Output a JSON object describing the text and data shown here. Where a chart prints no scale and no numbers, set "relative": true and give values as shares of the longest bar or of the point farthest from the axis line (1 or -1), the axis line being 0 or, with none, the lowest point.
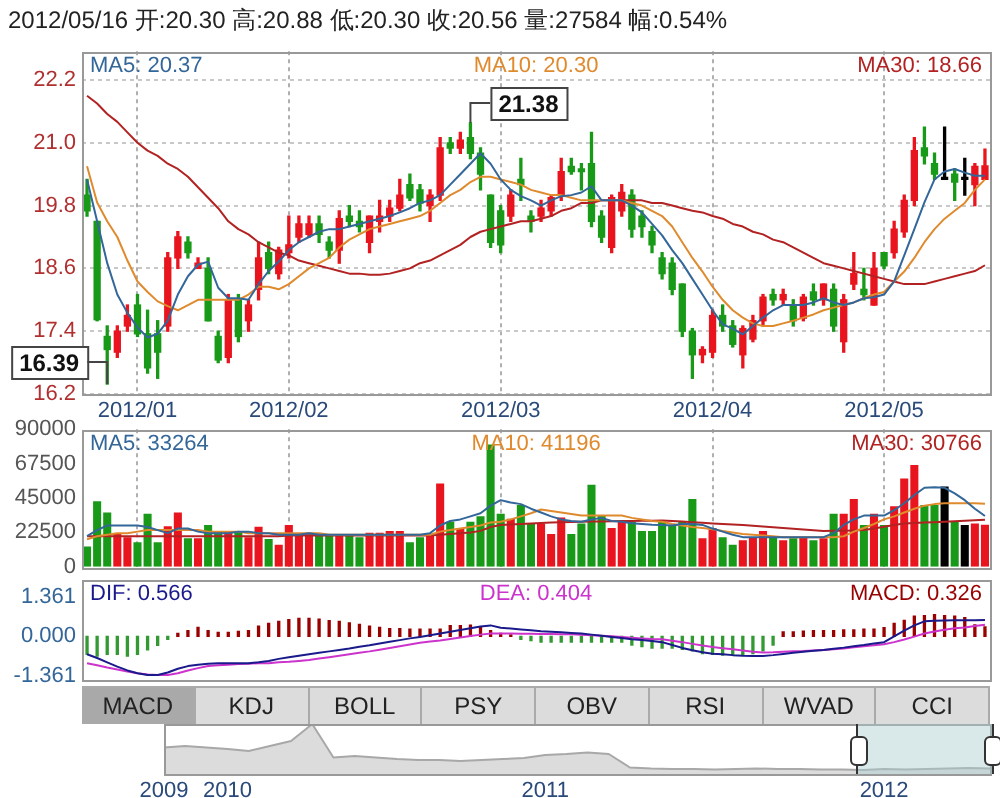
{
  "chart_data": [
    {
      "type": "candlestick",
      "title": "2012/05/16 开:20.30 高:20.88 低:20.30 收:20.56 量:27584 幅:0.54%",
      "legend": "top",
      "grid": true,
      "categories": [
        null,
        null,
        null,
        null,
        null,
        "2012/01",
        null,
        null,
        null,
        null,
        null,
        null,
        null,
        null,
        null,
        null,
        null,
        null,
        null,
        null,
        "2012/02",
        null,
        null,
        null,
        null,
        null,
        null,
        null,
        null,
        null,
        null,
        null,
        null,
        null,
        null,
        null,
        null,
        null,
        null,
        null,
        null,
        "2012/03",
        null,
        null,
        null,
        null,
        null,
        null,
        null,
        null,
        null,
        null,
        null,
        null,
        null,
        null,
        null,
        null,
        null,
        null,
        null,
        null,
        "2012/04",
        null,
        null,
        null,
        null,
        null,
        null,
        null,
        null,
        null,
        null,
        null,
        null,
        null,
        null,
        null,
        null,
        "2012/05",
        null,
        null,
        null,
        null,
        null,
        null,
        null,
        null,
        null,
        null
      ],
      "ohlc": [
        [
          20.0,
          20.3,
          19.6,
          19.7
        ],
        [
          19.5,
          19.5,
          17.6,
          17.62
        ],
        [
          17.3,
          17.5,
          16.39,
          17.05
        ],
        [
          17.0,
          17.5,
          16.9,
          17.4
        ],
        [
          17.5,
          17.9,
          17.4,
          17.7
        ],
        [
          17.9,
          18.1,
          17.3,
          17.35
        ],
        [
          17.35,
          17.8,
          16.6,
          16.7
        ],
        [
          17.35,
          17.6,
          16.5,
          17.0
        ],
        [
          17.5,
          18.9,
          17.4,
          18.8
        ],
        [
          18.8,
          19.3,
          18.6,
          19.2
        ],
        [
          19.1,
          19.2,
          18.8,
          18.9
        ],
        [
          18.6,
          18.8,
          18.6,
          18.7
        ],
        [
          18.6,
          18.8,
          17.6,
          17.6
        ],
        [
          17.3,
          17.4,
          16.8,
          16.85
        ],
        [
          16.9,
          18.1,
          16.8,
          18.0
        ],
        [
          18.0,
          18.1,
          17.2,
          17.3
        ],
        [
          17.6,
          18.0,
          17.4,
          17.9
        ],
        [
          18.2,
          19.1,
          18.0,
          18.8
        ],
        [
          18.9,
          19.1,
          18.5,
          18.6
        ],
        [
          18.5,
          19.0,
          18.4,
          18.95
        ],
        [
          18.9,
          19.6,
          18.8,
          19.05
        ],
        [
          19.2,
          19.6,
          19.1,
          19.45
        ],
        [
          19.25,
          19.6,
          19.2,
          19.45
        ],
        [
          19.45,
          19.6,
          19.1,
          19.25
        ],
        [
          19.1,
          19.2,
          18.8,
          18.95
        ],
        [
          18.95,
          19.7,
          18.7,
          19.55
        ],
        [
          19.6,
          19.8,
          19.4,
          19.5
        ],
        [
          19.5,
          19.7,
          19.3,
          19.4
        ],
        [
          19.1,
          19.6,
          18.9,
          19.6
        ],
        [
          19.5,
          19.9,
          19.3,
          19.6
        ],
        [
          19.6,
          19.9,
          19.5,
          19.75
        ],
        [
          19.75,
          20.3,
          19.7,
          20.0
        ],
        [
          20.2,
          20.4,
          19.9,
          19.95
        ],
        [
          20.1,
          20.2,
          19.7,
          19.85
        ],
        [
          19.8,
          20.1,
          19.5,
          20.0
        ],
        [
          20.0,
          21.1,
          19.9,
          20.9
        ],
        [
          21.0,
          21.1,
          20.8,
          20.9
        ],
        [
          20.9,
          21.2,
          20.8,
          21.05
        ],
        [
          21.1,
          21.38,
          20.7,
          20.8
        ],
        [
          20.8,
          20.9,
          20.1,
          20.4
        ],
        [
          20.0,
          20.0,
          19.0,
          19.1
        ],
        [
          19.7,
          19.8,
          18.9,
          19.05
        ],
        [
          19.6,
          20.1,
          19.5,
          20.0
        ],
        [
          20.3,
          20.7,
          19.9,
          20.2
        ],
        [
          19.6,
          19.7,
          19.3,
          19.5
        ],
        [
          19.6,
          19.9,
          19.5,
          19.75
        ],
        [
          19.7,
          20.0,
          19.6,
          19.95
        ],
        [
          20.0,
          20.7,
          19.9,
          20.45
        ],
        [
          20.55,
          20.7,
          20.4,
          20.45
        ],
        [
          20.5,
          20.6,
          20.1,
          20.45
        ],
        [
          20.6,
          21.2,
          19.4,
          19.5
        ],
        [
          19.6,
          19.7,
          19.1,
          19.2
        ],
        [
          19.0,
          20.0,
          18.9,
          19.95
        ],
        [
          19.7,
          20.2,
          19.6,
          20.05
        ],
        [
          20.0,
          20.1,
          19.2,
          19.35
        ],
        [
          19.6,
          19.7,
          19.2,
          19.4
        ],
        [
          19.3,
          19.4,
          18.9,
          19.05
        ],
        [
          18.8,
          18.9,
          18.4,
          18.5
        ],
        [
          18.7,
          18.8,
          18.1,
          18.2
        ],
        [
          18.3,
          18.3,
          17.3,
          17.4
        ],
        [
          17.4,
          17.45,
          16.5,
          16.95
        ],
        [
          16.95,
          17.1,
          16.8,
          17.05
        ],
        [
          17.0,
          17.8,
          16.9,
          17.7
        ],
        [
          17.7,
          17.9,
          17.4,
          17.5
        ],
        [
          17.5,
          17.6,
          17.1,
          17.15
        ],
        [
          16.95,
          17.5,
          16.7,
          17.45
        ],
        [
          17.25,
          17.7,
          17.2,
          17.6
        ],
        [
          17.6,
          18.1,
          17.5,
          18.05
        ],
        [
          18.1,
          18.2,
          17.9,
          18.0
        ],
        [
          18.0,
          18.2,
          17.9,
          18.1
        ],
        [
          17.9,
          18.0,
          17.5,
          17.6
        ],
        [
          17.65,
          18.1,
          17.6,
          18.05
        ],
        [
          18.15,
          18.3,
          17.9,
          18.0
        ],
        [
          18.0,
          18.3,
          17.9,
          18.3
        ],
        [
          18.2,
          18.3,
          17.4,
          17.5
        ],
        [
          17.2,
          18.1,
          17.0,
          18.0
        ],
        [
          18.3,
          18.9,
          18.2,
          18.5
        ],
        [
          18.2,
          18.6,
          18.0,
          18.1
        ],
        [
          17.9,
          18.9,
          17.9,
          18.6
        ],
        [
          18.9,
          18.9,
          18.6,
          18.65
        ],
        [
          18.9,
          19.5,
          18.8,
          19.35
        ],
        [
          19.3,
          20.0,
          19.2,
          19.9
        ],
        [
          19.9,
          21.1,
          19.8,
          20.85
        ],
        [
          20.9,
          21.3,
          20.6,
          20.75
        ],
        [
          20.6,
          20.8,
          20.3,
          20.4
        ],
        [
          20.3,
          21.3,
          20.3,
          20.3
        ],
        [
          20.4,
          20.5,
          19.9,
          20.25
        ],
        [
          20.3,
          20.7,
          20.0,
          20.3
        ],
        [
          20.2,
          20.6,
          19.8,
          20.55
        ],
        [
          20.3,
          20.88,
          20.3,
          20.56
        ]
      ],
      "colors": [
        "#189a18",
        "#189a18",
        "#189a18",
        "#e8141e",
        "#e8141e",
        "#189a18",
        "#189a18",
        "#189a18",
        "#e8141e",
        "#e8141e",
        "#189a18",
        "#e8141e",
        "#189a18",
        "#189a18",
        "#e8141e",
        "#189a18",
        "#e8141e",
        "#e8141e",
        "#189a18",
        "#e8141e",
        "#e8141e",
        "#e8141e",
        "#e8141e",
        "#189a18",
        "#189a18",
        "#e8141e",
        "#189a18",
        "#189a18",
        "#e8141e",
        "#e8141e",
        "#e8141e",
        "#e8141e",
        "#189a18",
        "#189a18",
        "#e8141e",
        "#e8141e",
        "#189a18",
        "#e8141e",
        "#189a18",
        "#189a18",
        "#189a18",
        "#189a18",
        "#e8141e",
        "#189a18",
        "#189a18",
        "#e8141e",
        "#e8141e",
        "#e8141e",
        "#189a18",
        "#189a18",
        "#189a18",
        "#189a18",
        "#e8141e",
        "#e8141e",
        "#189a18",
        "#189a18",
        "#189a18",
        "#189a18",
        "#189a18",
        "#189a18",
        "#189a18",
        "#e8141e",
        "#e8141e",
        "#189a18",
        "#189a18",
        "#e8141e",
        "#e8141e",
        "#e8141e",
        "#189a18",
        "#e8141e",
        "#189a18",
        "#e8141e",
        "#189a18",
        "#e8141e",
        "#189a18",
        "#e8141e",
        "#e8141e",
        "#189a18",
        "#e8141e",
        "#189a18",
        "#e8141e",
        "#e8141e",
        "#e8141e",
        "#189a18",
        "#189a18",
        "#000000",
        "#189a18",
        "#000000",
        "#e8141e",
        "#e8141e"
      ],
      "series": [
        {
          "name": "MA5: 20.37",
          "type": "line",
          "color": "#336699",
          "values": [
            20.3,
            19.5,
            18.7,
            18.1,
            17.75,
            17.47,
            17.28,
            17.35,
            17.6,
            18.1,
            18.45,
            18.67,
            18.73,
            18.23,
            18.03,
            18.03,
            18.0,
            18.3,
            18.55,
            18.73,
            18.95,
            19.1,
            19.2,
            19.3,
            19.35,
            19.35,
            19.4,
            19.45,
            19.5,
            19.55,
            19.6,
            19.67,
            19.75,
            19.85,
            19.9,
            20.0,
            20.2,
            20.4,
            20.6,
            20.8,
            20.6,
            20.3,
            20.1,
            19.98,
            19.9,
            19.8,
            19.9,
            19.98,
            20.0,
            20.05,
            20.17,
            19.9,
            19.9,
            19.9,
            19.8,
            19.67,
            19.45,
            19.23,
            18.95,
            18.7,
            18.4,
            18.1,
            17.8,
            17.53,
            17.45,
            17.34,
            17.5,
            17.66,
            17.8,
            17.9,
            17.9,
            17.9,
            17.95,
            18.03,
            17.95,
            17.9,
            17.95,
            18.03,
            18.05,
            18.1,
            18.35,
            18.85,
            19.35,
            19.86,
            20.3,
            20.45,
            20.5,
            20.43,
            20.37,
            20.37
          ]
        },
        {
          "name": "MA10: 20.30",
          "type": "line",
          "color": "#e08a2e",
          "values": [
            20.55,
            19.86,
            19.5,
            19.2,
            18.75,
            18.35,
            18.15,
            17.97,
            17.88,
            17.8,
            17.9,
            18.0,
            18.0,
            18.0,
            18.0,
            18.0,
            18.1,
            18.25,
            18.25,
            18.2,
            18.3,
            18.45,
            18.6,
            18.7,
            18.8,
            19.0,
            19.15,
            19.25,
            19.35,
            19.4,
            19.45,
            19.5,
            19.55,
            19.6,
            19.7,
            19.85,
            20.0,
            20.1,
            20.25,
            20.35,
            20.35,
            20.3,
            20.25,
            20.2,
            20.1,
            20.05,
            20.0,
            20.0,
            19.95,
            19.9,
            19.9,
            19.9,
            19.9,
            19.9,
            19.85,
            19.8,
            19.7,
            19.6,
            19.4,
            19.1,
            18.8,
            18.54,
            18.25,
            18.0,
            17.8,
            17.66,
            17.55,
            17.5,
            17.5,
            17.55,
            17.6,
            17.66,
            17.72,
            17.8,
            17.85,
            17.9,
            17.95,
            18.03,
            18.1,
            18.15,
            18.35,
            18.54,
            18.8,
            19.1,
            19.35,
            19.55,
            19.7,
            19.85,
            20.1,
            20.3
          ]
        },
        {
          "name": "MA30: 18.66",
          "type": "line",
          "color": "#b22222",
          "values": [
            21.9,
            21.75,
            21.55,
            21.4,
            21.2,
            21.0,
            20.85,
            20.75,
            20.6,
            20.5,
            20.35,
            20.15,
            19.95,
            19.75,
            19.5,
            19.35,
            19.25,
            19.1,
            19.0,
            18.9,
            18.85,
            18.75,
            18.7,
            18.65,
            18.6,
            18.55,
            18.5,
            18.5,
            18.48,
            18.48,
            18.5,
            18.55,
            18.6,
            18.7,
            18.75,
            18.85,
            18.95,
            19.05,
            19.2,
            19.3,
            19.35,
            19.4,
            19.45,
            19.5,
            19.5,
            19.55,
            19.6,
            19.7,
            19.75,
            19.85,
            19.85,
            19.9,
            19.9,
            19.9,
            19.9,
            19.9,
            19.85,
            19.85,
            19.8,
            19.75,
            19.7,
            19.67,
            19.6,
            19.55,
            19.45,
            19.4,
            19.3,
            19.25,
            19.15,
            19.1,
            19.0,
            18.9,
            18.8,
            18.7,
            18.65,
            18.6,
            18.55,
            18.5,
            18.45,
            18.4,
            18.35,
            18.3,
            18.3,
            18.3,
            18.35,
            18.4,
            18.45,
            18.5,
            18.55,
            18.66
          ]
        }
      ],
      "ylim": [
        16.2,
        22.75
      ],
      "yticks": [
        16.2,
        17.4,
        18.6,
        19.8,
        {
          "value": 21,
          "label": "21.0"
        },
        22.2
      ],
      "annotations": [
        "21.38",
        "16.39"
      ]
    },
    {
      "type": "bar",
      "legend": "top",
      "grid": "x",
      "tick_labels": "y",
      "categories": [
        null,
        null,
        null,
        null,
        null,
        "2012/01",
        null,
        null,
        null,
        null,
        null,
        null,
        null,
        null,
        null,
        null,
        null,
        null,
        null,
        null,
        "2012/02",
        null,
        null,
        null,
        null,
        null,
        null,
        null,
        null,
        null,
        null,
        null,
        null,
        null,
        null,
        null,
        null,
        null,
        null,
        null,
        null,
        "2012/03",
        null,
        null,
        null,
        null,
        null,
        null,
        null,
        null,
        null,
        null,
        null,
        null,
        null,
        null,
        null,
        null,
        null,
        null,
        null,
        null,
        "2012/04",
        null,
        null,
        null,
        null,
        null,
        null,
        null,
        null,
        null,
        null,
        null,
        null,
        null,
        null,
        null,
        null,
        "2012/05",
        null,
        null,
        null,
        null,
        null,
        null,
        null,
        null,
        null,
        null
      ],
      "series": [
        {
          "type": "bar",
          "colors": [
            "#189a18",
            "#189a18",
            "#189a18",
            "#e8141e",
            "#e8141e",
            "#189a18",
            "#189a18",
            "#189a18",
            "#e8141e",
            "#e8141e",
            "#189a18",
            "#e8141e",
            "#189a18",
            "#189a18",
            "#e8141e",
            "#189a18",
            "#e8141e",
            "#e8141e",
            "#189a18",
            "#e8141e",
            "#e8141e",
            "#e8141e",
            "#e8141e",
            "#189a18",
            "#189a18",
            "#e8141e",
            "#189a18",
            "#189a18",
            "#e8141e",
            "#e8141e",
            "#e8141e",
            "#e8141e",
            "#189a18",
            "#189a18",
            "#e8141e",
            "#e8141e",
            "#189a18",
            "#e8141e",
            "#189a18",
            "#189a18",
            "#189a18",
            "#189a18",
            "#e8141e",
            "#189a18",
            "#189a18",
            "#e8141e",
            "#e8141e",
            "#e8141e",
            "#189a18",
            "#189a18",
            "#189a18",
            "#189a18",
            "#e8141e",
            "#e8141e",
            "#189a18",
            "#189a18",
            "#189a18",
            "#189a18",
            "#189a18",
            "#189a18",
            "#189a18",
            "#e8141e",
            "#e8141e",
            "#189a18",
            "#189a18",
            "#e8141e",
            "#e8141e",
            "#e8141e",
            "#189a18",
            "#e8141e",
            "#189a18",
            "#e8141e",
            "#189a18",
            "#e8141e",
            "#189a18",
            "#e8141e",
            "#e8141e",
            "#189a18",
            "#e8141e",
            "#189a18",
            "#e8141e",
            "#e8141e",
            "#e8141e",
            "#189a18",
            "#189a18",
            "#000000",
            "#189a18",
            "#000000",
            "#e8141e",
            "#e8141e"
          ],
          "values": [
            13300,
            42800,
            35500,
            21400,
            19400,
            16100,
            34700,
            16100,
            26600,
            35500,
            18600,
            18600,
            27400,
            23400,
            23400,
            23400,
            19400,
            26200,
            18200,
            14500,
            27400,
            21400,
            22200,
            20600,
            20600,
            21400,
            20200,
            19400,
            22200,
            22200,
            23400,
            23400,
            16100,
            19400,
            21400,
            54500,
            29500,
            25400,
            29500,
            33000,
            80000,
            34700,
            31500,
            40400,
            28300,
            28300,
            21400,
            32300,
            21400,
            28300,
            53700,
            33500,
            25400,
            29500,
            29500,
            23400,
            23400,
            29500,
            27400,
            29500,
            44400,
            18600,
            25400,
            19400,
            14500,
            17400,
            19400,
            23400,
            19400,
            17400,
            18600,
            19400,
            17400,
            18600,
            34700,
            34700,
            44400,
            27400,
            34700,
            27400,
            39600,
            57700,
            66600,
            40400,
            40400,
            52500,
            29500,
            27400,
            28300,
            27584
          ]
        },
        {
          "name": "MA5: 33264",
          "type": "line",
          "color": "#336699",
          "values": [
            20000,
            24000,
            27000,
            27000,
            27000,
            27000,
            26000,
            24000,
            22000,
            25000,
            25000,
            23000,
            22000,
            22000,
            22000,
            23000,
            23000,
            22000,
            22000,
            21000,
            21000,
            21000,
            22000,
            21000,
            21000,
            21000,
            21000,
            21000,
            21000,
            21000,
            21000,
            21000,
            21000,
            21000,
            22000,
            27000,
            30000,
            31000,
            33000,
            35000,
            40000,
            43600,
            42000,
            41000,
            38000,
            35500,
            33000,
            31000,
            30000,
            29500,
            31000,
            32000,
            30000,
            29500,
            28500,
            28000,
            27500,
            27400,
            27000,
            28000,
            28000,
            27400,
            25000,
            23000,
            21000,
            19400,
            19400,
            19400,
            19400,
            19400,
            19400,
            19400,
            19400,
            19400,
            22000,
            27400,
            31000,
            33500,
            33500,
            33500,
            37000,
            41600,
            47000,
            51700,
            52000,
            51700,
            48000,
            43600,
            38000,
            33264
          ]
        },
        {
          "name": "MA10: 41196",
          "type": "line",
          "color": "#e08a2e",
          "values": [
            18000,
            20000,
            21000,
            22000,
            22000,
            23000,
            24000,
            24000,
            24000,
            24000,
            24000,
            24000,
            23000,
            23000,
            23000,
            23000,
            22000,
            22000,
            22000,
            22000,
            22000,
            22000,
            22000,
            22000,
            21000,
            21000,
            21000,
            21000,
            21000,
            21000,
            21000,
            21000,
            21000,
            21000,
            21000,
            23000,
            24000,
            25000,
            26000,
            27000,
            29000,
            29500,
            31000,
            33000,
            35000,
            37500,
            36500,
            35500,
            34500,
            33500,
            33500,
            33500,
            33500,
            33500,
            32000,
            31000,
            30000,
            29500,
            28000,
            27000,
            26000,
            25400,
            24500,
            23500,
            22500,
            21400,
            21000,
            20500,
            20000,
            19400,
            19400,
            19400,
            19400,
            19400,
            19400,
            20000,
            23000,
            25400,
            28000,
            31000,
            33000,
            35500,
            38000,
            40000,
            41000,
            41600,
            41600,
            41600,
            41600,
            41196
          ]
        },
        {
          "name": "MA30: 30766",
          "type": "line",
          "color": "#b22222",
          "values": [
            20000,
            20000,
            20000,
            20000,
            20000,
            20000,
            20000,
            20000,
            20000,
            20000,
            20000,
            20000,
            20000,
            20000,
            20000,
            20000,
            20000,
            20000,
            20000,
            20000,
            20500,
            20500,
            20500,
            20500,
            20500,
            20500,
            20500,
            20500,
            20500,
            20500,
            20500,
            20500,
            20500,
            20500,
            20500,
            21000,
            21500,
            22000,
            22500,
            23500,
            26000,
            27400,
            27700,
            28000,
            28300,
            28600,
            28900,
            29100,
            29300,
            29500,
            29600,
            29700,
            29800,
            29900,
            30000,
            30100,
            30200,
            30300,
            30000,
            29600,
            29200,
            28800,
            28400,
            28000,
            27700,
            27400,
            26900,
            26400,
            25900,
            25400,
            24900,
            24400,
            23900,
            23400,
            23500,
            23600,
            23800,
            24000,
            25000,
            26200,
            27300,
            28300,
            28600,
            28900,
            29200,
            29500,
            29800,
            30100,
            30400,
            30766
          ]
        }
      ],
      "ylim": [
        0,
        90000
      ],
      "yticks": [
        0,
        22500,
        45000,
        67500,
        90000
      ]
    },
    {
      "type": "bar",
      "legend": "top",
      "tick_labels": "y",
      "categories": [
        null,
        null,
        null,
        null,
        null,
        "2012/01",
        null,
        null,
        null,
        null,
        null,
        null,
        null,
        null,
        null,
        null,
        null,
        null,
        null,
        null,
        "2012/02",
        null,
        null,
        null,
        null,
        null,
        null,
        null,
        null,
        null,
        null,
        null,
        null,
        null,
        null,
        null,
        null,
        null,
        null,
        null,
        null,
        "2012/03",
        null,
        null,
        null,
        null,
        null,
        null,
        null,
        null,
        null,
        null,
        null,
        null,
        null,
        null,
        null,
        null,
        null,
        null,
        null,
        null,
        "2012/04",
        null,
        null,
        null,
        null,
        null,
        null,
        null,
        null,
        null,
        null,
        null,
        null,
        null,
        null,
        null,
        null,
        "2012/05",
        null,
        null,
        null,
        null,
        null,
        null,
        null,
        null,
        null,
        null
      ],
      "series": [
        {
          "name": "DIF: 0.566",
          "type": "line",
          "color": "#1a1a8c",
          "values": [
            -0.62,
            -0.75,
            -0.9,
            -1.05,
            -1.18,
            -1.28,
            -1.34,
            -1.34,
            -1.25,
            -1.12,
            -1.03,
            -0.98,
            -0.95,
            -0.93,
            -0.93,
            -0.93,
            -0.93,
            -0.9,
            -0.85,
            -0.78,
            -0.72,
            -0.67,
            -0.62,
            -0.57,
            -0.52,
            -0.47,
            -0.42,
            -0.36,
            -0.31,
            -0.25,
            -0.19,
            -0.13,
            -0.07,
            -0.02,
            0.04,
            0.1,
            0.16,
            0.22,
            0.28,
            0.34,
            0.38,
            0.3,
            0.27,
            0.24,
            0.21,
            0.18,
            0.16,
            0.14,
            0.12,
            0.1,
            0.06,
            0.02,
            -0.02,
            -0.06,
            -0.1,
            -0.13,
            -0.16,
            -0.2,
            -0.3,
            -0.4,
            -0.48,
            -0.55,
            -0.6,
            -0.62,
            -0.65,
            -0.67,
            -0.68,
            -0.68,
            -0.65,
            -0.61,
            -0.57,
            -0.53,
            -0.5,
            -0.47,
            -0.43,
            -0.39,
            -0.34,
            -0.3,
            -0.25,
            -0.2,
            0.0,
            0.2,
            0.38,
            0.52,
            0.54,
            0.55,
            0.56,
            0.56,
            0.56,
            0.566
          ]
        },
        {
          "name": "DEA: 0.404",
          "type": "line",
          "color": "#cc33cc",
          "values": [
            -0.93,
            -1.0,
            -1.08,
            -1.15,
            -1.22,
            -1.28,
            -1.32,
            -1.34,
            -1.34,
            -1.28,
            -1.18,
            -1.1,
            -1.03,
            -1.0,
            -0.98,
            -0.96,
            -0.95,
            -0.93,
            -0.93,
            -0.9,
            -0.88,
            -0.85,
            -0.82,
            -0.77,
            -0.72,
            -0.67,
            -0.62,
            -0.57,
            -0.52,
            -0.46,
            -0.4,
            -0.34,
            -0.28,
            -0.22,
            -0.18,
            -0.14,
            -0.09,
            -0.04,
            0.01,
            0.06,
            0.1,
            0.1,
            0.1,
            0.09,
            0.09,
            0.08,
            0.08,
            0.07,
            0.07,
            0.06,
            0.04,
            0.02,
            0.0,
            -0.02,
            -0.05,
            -0.07,
            -0.09,
            -0.1,
            -0.15,
            -0.2,
            -0.26,
            -0.32,
            -0.37,
            -0.41,
            -0.45,
            -0.49,
            -0.53,
            -0.56,
            -0.55,
            -0.53,
            -0.52,
            -0.51,
            -0.49,
            -0.47,
            -0.45,
            -0.42,
            -0.38,
            -0.34,
            -0.31,
            -0.27,
            -0.2,
            -0.11,
            -0.01,
            0.1,
            0.17,
            0.23,
            0.28,
            0.31,
            0.36,
            0.404
          ]
        },
        {
          "name": "MACD: 0.326",
          "type": "bar",
          "color": "#990000",
          "colors": [
            "#339933",
            "#339933",
            "#339933",
            "#339933",
            "#339933",
            "#339933",
            "#339933",
            "#339933",
            "#339933",
            "#990000",
            "#990000",
            "#990000",
            "#990000",
            "#990000",
            "#990000",
            "#990000",
            "#990000",
            "#990000",
            "#990000",
            "#990000",
            "#990000",
            "#990000",
            "#990000",
            "#990000",
            "#990000",
            "#990000",
            "#990000",
            "#990000",
            "#990000",
            "#990000",
            "#990000",
            "#990000",
            "#990000",
            "#990000",
            "#990000",
            "#990000",
            "#990000",
            "#990000",
            "#990000",
            "#990000",
            "#990000",
            "#990000",
            "#990000",
            "#339933",
            "#339933",
            "#339933",
            "#339933",
            "#339933",
            "#339933",
            "#339933",
            "#339933",
            "#339933",
            "#339933",
            "#339933",
            "#339933",
            "#339933",
            "#339933",
            "#339933",
            "#339933",
            "#339933",
            "#339933",
            "#339933",
            "#339933",
            "#339933",
            "#339933",
            "#339933",
            "#339933",
            "#339933",
            "#339933",
            "#990000",
            "#990000",
            "#990000",
            "#990000",
            "#990000",
            "#990000",
            "#990000",
            "#990000",
            "#990000",
            "#990000",
            "#990000",
            "#990000",
            "#990000",
            "#990000",
            "#990000",
            "#990000",
            "#990000",
            "#990000",
            "#990000",
            "#990000",
            "#990000"
          ],
          "values": [
            -0.62,
            -0.68,
            -0.62,
            -0.62,
            -0.68,
            -0.62,
            -0.47,
            -0.31,
            -0.1,
            0.1,
            0.2,
            0.31,
            0.2,
            0.14,
            0.14,
            0.17,
            0.2,
            0.35,
            0.45,
            0.52,
            0.58,
            0.62,
            0.62,
            0.6,
            0.54,
            0.52,
            0.47,
            0.41,
            0.35,
            0.31,
            0.27,
            0.27,
            0.25,
            0.25,
            0.25,
            0.25,
            0.37,
            0.37,
            0.39,
            0.31,
            0.2,
            0.1,
            0.05,
            -0.1,
            -0.15,
            -0.2,
            -0.2,
            -0.2,
            -0.2,
            -0.2,
            -0.2,
            -0.2,
            -0.2,
            -0.2,
            -0.3,
            -0.35,
            -0.41,
            -0.41,
            -0.41,
            -0.45,
            -0.5,
            -0.6,
            -0.62,
            -0.65,
            -0.65,
            -0.62,
            -0.6,
            -0.5,
            -0.3,
            0.15,
            0.15,
            0.18,
            0.2,
            0.2,
            0.2,
            0.22,
            0.22,
            0.25,
            0.25,
            0.3,
            0.45,
            0.55,
            0.7,
            0.72,
            0.75,
            0.72,
            0.7,
            0.65,
            0.4,
            0.326
          ]
        }
      ],
      "ylim": [
        -1.47,
        1.98
      ],
      "yticks": [
        -1.361,
        {
          "value": 0,
          "label": "0.000"
        },
        1.361
      ]
    },
    {
      "type": "area",
      "relative": true,
      "tick_labels": "x",
      "color": "#a8a8a8",
      "categories": [
        "2009",
        null,
        null,
        "2010",
        null,
        null,
        null,
        null,
        null,
        null,
        null,
        null,
        null,
        null,
        null,
        null,
        null,
        null,
        "2011",
        null,
        null,
        null,
        null,
        null,
        null,
        null,
        null,
        null,
        null,
        null,
        null,
        null,
        null,
        null,
        "2012",
        null,
        null,
        null,
        null,
        null
      ],
      "values": [
        0.53,
        0.56,
        0.53,
        0.5,
        0.46,
        0.56,
        0.66,
        1,
        0.33,
        0.36,
        0.33,
        0.3,
        0.28,
        0.28,
        0.26,
        0.28,
        0.3,
        0.32,
        0.38,
        0.4,
        0.43,
        0.4,
        0.13,
        0.11,
        0.1,
        0.1,
        0.09,
        0.1,
        0.11,
        0.1,
        0.1,
        0.09,
        0.09,
        0.08,
        0.1,
        0.09,
        0.1,
        0.11,
        0.12,
        0.11
      ]
    },
    {
      "type": "other",
      "annotations": [
        "MACD",
        "KDJ",
        "BOLL",
        "PSY",
        "OBV",
        "RSI",
        "WVAD",
        "CCI"
      ]
    }
  ]
}
